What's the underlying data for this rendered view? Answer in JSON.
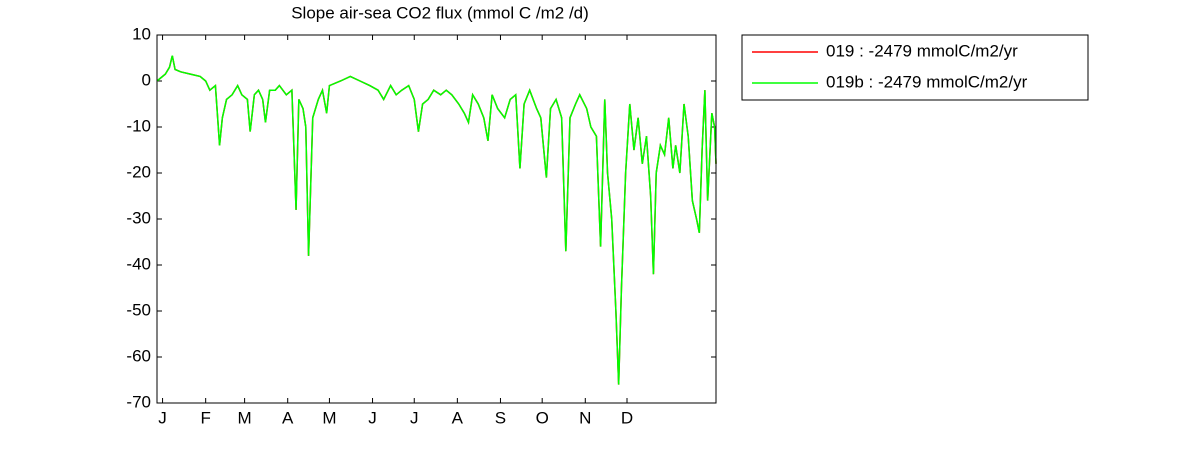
{
  "chart_data": {
    "type": "line",
    "title": "Slope  air-sea CO2 flux (mmol C /m2 /d)",
    "x": [
      -3,
      3,
      6,
      8,
      10,
      14,
      21,
      28,
      32,
      35,
      39,
      42,
      44,
      47,
      51,
      55,
      58,
      62,
      64,
      67,
      70,
      73,
      75,
      78,
      82,
      85,
      90,
      94,
      97,
      99,
      102,
      104,
      106,
      109,
      113,
      116,
      119,
      121,
      129,
      136,
      143,
      150,
      156,
      160,
      165,
      169,
      173,
      178,
      182,
      185,
      188,
      192,
      196,
      201,
      205,
      209,
      214,
      218,
      221,
      224,
      228,
      232,
      235,
      238,
      242,
      247,
      251,
      255,
      258,
      261,
      265,
      270,
      273,
      277,
      280,
      284,
      288,
      291,
      294,
      298,
      301,
      306,
      309,
      313,
      316,
      319,
      321,
      324,
      327,
      329,
      331,
      334,
      337,
      340,
      343,
      346,
      349,
      352,
      354,
      356,
      359,
      362,
      365,
      368,
      370,
      373,
      376,
      379,
      382,
      385,
      387,
      389,
      391,
      393,
      396,
      398,
      399
    ],
    "series": [
      {
        "name": "019 : -2479 mmolC/m2/yr",
        "color": "#ff0000",
        "values": [
          0,
          1.5,
          3,
          5.5,
          2.5,
          2,
          1.5,
          1,
          0,
          -2,
          -1,
          -14,
          -8,
          -4,
          -3,
          -1,
          -3,
          -4,
          -11,
          -3,
          -2,
          -4,
          -9,
          -2,
          -2,
          -1,
          -3,
          -2,
          -28,
          -4,
          -6,
          -10,
          -38,
          -8,
          -4,
          -2,
          -7,
          -1,
          0,
          1,
          0,
          -1,
          -2,
          -4,
          -1,
          -3,
          -2,
          -1,
          -4,
          -11,
          -5,
          -4,
          -2,
          -3,
          -2,
          -3,
          -5,
          -7,
          -9,
          -3,
          -5,
          -8,
          -13,
          -3,
          -6,
          -8,
          -4,
          -3,
          -19,
          -5,
          -2,
          -6,
          -8,
          -21,
          -6,
          -4,
          -8,
          -37,
          -8,
          -5,
          -3,
          -6,
          -10,
          -12,
          -36,
          -4,
          -20,
          -30,
          -50,
          -66,
          -45,
          -20,
          -5,
          -15,
          -8,
          -18,
          -12,
          -25,
          -42,
          -20,
          -14,
          -16,
          -8,
          -19,
          -14,
          -20,
          -5,
          -12,
          -26,
          -30,
          -33,
          -15,
          -2,
          -26,
          -7,
          -10,
          -18
        ]
      },
      {
        "name": "019b : -2479 mmolC/m2/yr",
        "color": "#00ff00",
        "values": [
          0,
          1.5,
          3,
          5.5,
          2.5,
          2,
          1.5,
          1,
          0,
          -2,
          -1,
          -14,
          -8,
          -4,
          -3,
          -1,
          -3,
          -4,
          -11,
          -3,
          -2,
          -4,
          -9,
          -2,
          -2,
          -1,
          -3,
          -2,
          -28,
          -4,
          -6,
          -10,
          -38,
          -8,
          -4,
          -2,
          -7,
          -1,
          0,
          1,
          0,
          -1,
          -2,
          -4,
          -1,
          -3,
          -2,
          -1,
          -4,
          -11,
          -5,
          -4,
          -2,
          -3,
          -2,
          -3,
          -5,
          -7,
          -9,
          -3,
          -5,
          -8,
          -13,
          -3,
          -6,
          -8,
          -4,
          -3,
          -19,
          -5,
          -2,
          -6,
          -8,
          -21,
          -6,
          -4,
          -8,
          -37,
          -8,
          -5,
          -3,
          -6,
          -10,
          -12,
          -36,
          -4,
          -20,
          -30,
          -50,
          -66,
          -45,
          -20,
          -5,
          -15,
          -8,
          -18,
          -12,
          -25,
          -42,
          -20,
          -14,
          -16,
          -8,
          -19,
          -14,
          -20,
          -5,
          -12,
          -26,
          -30,
          -33,
          -15,
          -2,
          -26,
          -7,
          -10,
          -18
        ]
      }
    ],
    "xlim": [
      -3,
      399
    ],
    "xticks": [
      {
        "value": 1,
        "label": "J"
      },
      {
        "value": 32,
        "label": "F"
      },
      {
        "value": 60,
        "label": "M"
      },
      {
        "value": 91,
        "label": "A"
      },
      {
        "value": 121,
        "label": "M"
      },
      {
        "value": 152,
        "label": "J"
      },
      {
        "value": 182,
        "label": "J"
      },
      {
        "value": 213,
        "label": "A"
      },
      {
        "value": 244,
        "label": "S"
      },
      {
        "value": 274,
        "label": "O"
      },
      {
        "value": 305,
        "label": "N"
      },
      {
        "value": 335,
        "label": "D"
      }
    ],
    "ylim": [
      -70,
      10
    ],
    "yticks": [
      -70,
      -60,
      -50,
      -40,
      -30,
      -20,
      -10,
      0,
      10
    ],
    "grid": false,
    "legend": "outside-right"
  }
}
